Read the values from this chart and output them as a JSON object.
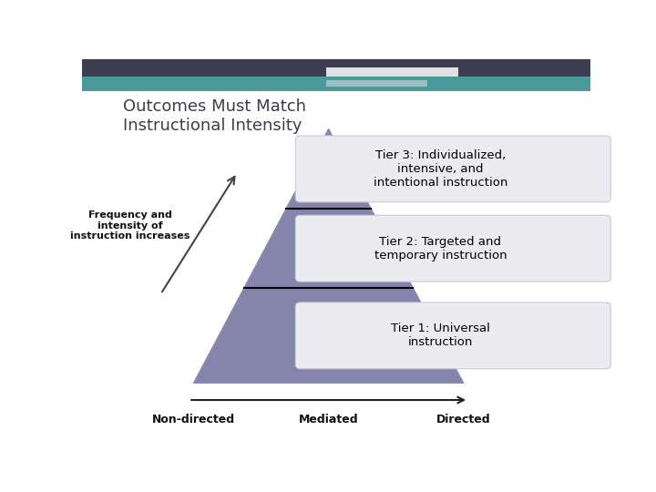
{
  "title_line1": "Outcomes Must Match",
  "title_line2": "Instructional Intensity",
  "background_color": "#ffffff",
  "header_dark_color": "#3d3d52",
  "header_teal_color": "#4a9a9c",
  "header_light_teal": "#a8c8cc",
  "deco_white": "#e8f0f0",
  "pyramid_color": "#6b6b9e",
  "pyramid_light_color": "#9999bb",
  "tier3_label": "Tier 3: Individualized,\nintensive, and\nintentional instruction",
  "tier2_label": "Tier 2: Targeted and\ntemporary instruction",
  "tier1_label": "Tier 1: Universal\ninstruction",
  "freq_label": "Frequency and\nintensity of\ninstruction increases",
  "x_labels": [
    "Non-directed",
    "Mediated",
    "Directed"
  ],
  "box_bg": "#ebebf0",
  "box_bg2": "#e0e0ea",
  "title_color": "#3d3d52",
  "arrow_color": "#444444"
}
